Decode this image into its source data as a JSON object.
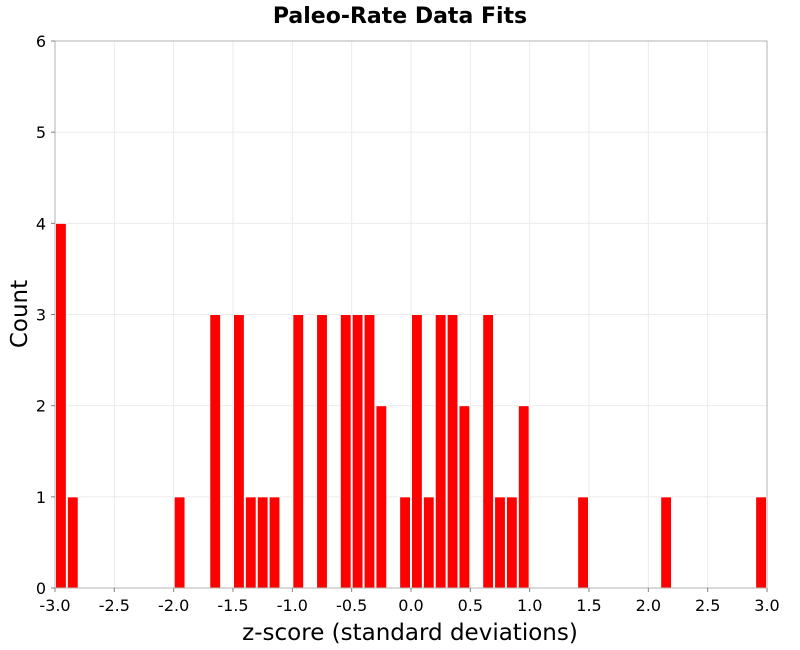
{
  "chart_data": {
    "type": "bar",
    "title": "Paleo-Rate Data Fits",
    "xlabel": "z-score (standard deviations)",
    "ylabel": "Count",
    "xlim": [
      -3.0,
      3.0
    ],
    "ylim": [
      0,
      6
    ],
    "x_ticks": [
      "-3.0",
      "-2.5",
      "-2.0",
      "-1.5",
      "-1.0",
      "-0.5",
      "0.0",
      "0.5",
      "1.0",
      "1.5",
      "2.0",
      "2.5",
      "3.0"
    ],
    "y_ticks": [
      "0",
      "1",
      "2",
      "3",
      "4",
      "5",
      "6"
    ],
    "grid": true,
    "bar_color": "#ff0000",
    "bin_width": 0.1,
    "bins": [
      {
        "start": -3.0,
        "count": 4
      },
      {
        "start": -2.9,
        "count": 1
      },
      {
        "start": -2.0,
        "count": 1
      },
      {
        "start": -1.7,
        "count": 3
      },
      {
        "start": -1.5,
        "count": 3
      },
      {
        "start": -1.4,
        "count": 1
      },
      {
        "start": -1.3,
        "count": 1
      },
      {
        "start": -1.2,
        "count": 1
      },
      {
        "start": -1.0,
        "count": 3
      },
      {
        "start": -0.8,
        "count": 3
      },
      {
        "start": -0.6,
        "count": 3
      },
      {
        "start": -0.5,
        "count": 3
      },
      {
        "start": -0.4,
        "count": 3
      },
      {
        "start": -0.3,
        "count": 2
      },
      {
        "start": -0.1,
        "count": 1
      },
      {
        "start": 0.0,
        "count": 3
      },
      {
        "start": 0.1,
        "count": 1
      },
      {
        "start": 0.2,
        "count": 3
      },
      {
        "start": 0.3,
        "count": 3
      },
      {
        "start": 0.4,
        "count": 2
      },
      {
        "start": 0.6,
        "count": 3
      },
      {
        "start": 0.7,
        "count": 1
      },
      {
        "start": 0.8,
        "count": 1
      },
      {
        "start": 0.9,
        "count": 2
      },
      {
        "start": 1.4,
        "count": 1
      },
      {
        "start": 2.1,
        "count": 1
      },
      {
        "start": 2.9,
        "count": 1
      }
    ]
  }
}
